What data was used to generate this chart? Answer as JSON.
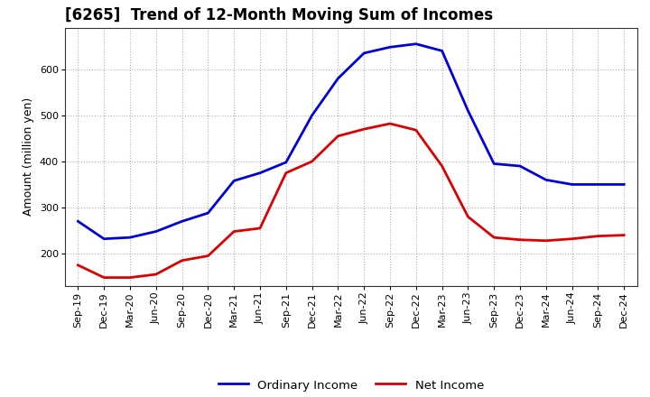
{
  "title": "[6265]  Trend of 12-Month Moving Sum of Incomes",
  "ylabel": "Amount (million yen)",
  "background_color": "#ffffff",
  "grid_color": "#b0b0b0",
  "labels": [
    "Sep-19",
    "Dec-19",
    "Mar-20",
    "Jun-20",
    "Sep-20",
    "Dec-20",
    "Mar-21",
    "Jun-21",
    "Sep-21",
    "Dec-21",
    "Mar-22",
    "Jun-22",
    "Sep-22",
    "Dec-22",
    "Mar-23",
    "Jun-23",
    "Sep-23",
    "Dec-23",
    "Mar-24",
    "Jun-24",
    "Sep-24",
    "Dec-24"
  ],
  "ordinary_income": [
    270,
    232,
    235,
    248,
    270,
    288,
    358,
    375,
    398,
    500,
    580,
    635,
    648,
    655,
    640,
    510,
    395,
    390,
    360,
    350,
    350,
    350
  ],
  "net_income": [
    175,
    148,
    148,
    155,
    185,
    195,
    248,
    255,
    375,
    400,
    455,
    470,
    482,
    468,
    390,
    280,
    235,
    230,
    228,
    232,
    238,
    240
  ],
  "ordinary_color": "#0000dd",
  "net_color": "#dd0000",
  "ylim": [
    130,
    690
  ],
  "yticks": [
    200,
    300,
    400,
    500,
    600
  ],
  "line_width": 2.0,
  "title_fontsize": 12,
  "axis_fontsize": 9,
  "tick_fontsize": 8
}
